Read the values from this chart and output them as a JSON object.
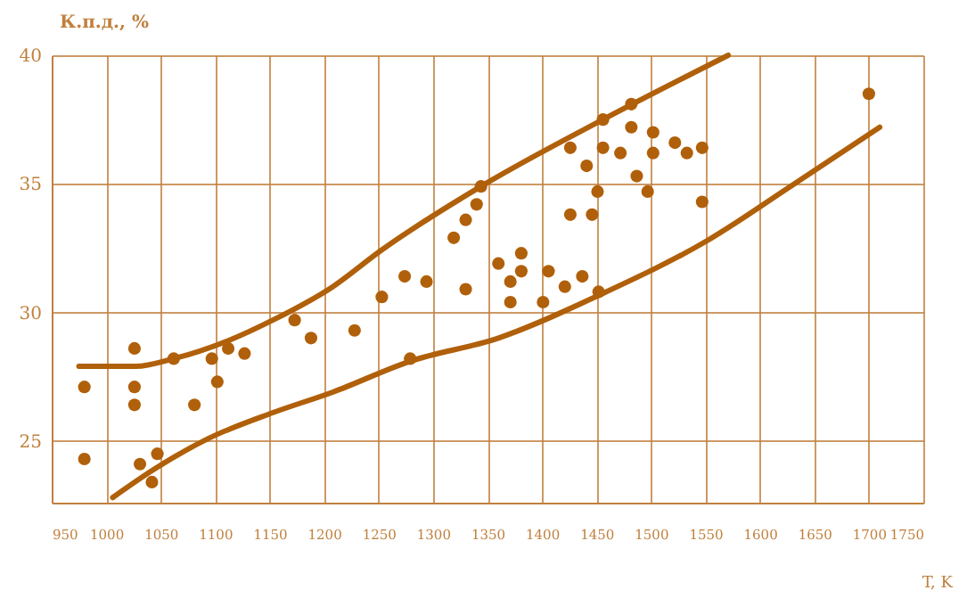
{
  "chart_data": {
    "type": "scatter",
    "xlabel": "T, K",
    "ylabel": "К.п.д., %",
    "xlim": [
      950,
      1750
    ],
    "ylim": [
      22.6,
      40
    ],
    "xticks": [
      950,
      1000,
      1050,
      1100,
      1150,
      1200,
      1250,
      1300,
      1350,
      1400,
      1450,
      1500,
      1550,
      1600,
      1650,
      1700,
      1750
    ],
    "yticks": [
      25,
      30,
      35,
      40
    ],
    "grid": true,
    "series": [
      {
        "marker": "circle",
        "color": "#b0600a",
        "x": [
          980,
          980,
          1026,
          1026,
          1026,
          1031,
          1042,
          1047,
          1062,
          1081,
          1097,
          1102,
          1112,
          1127,
          1173,
          1188,
          1228,
          1253,
          1279,
          1274,
          1294,
          1330,
          1319,
          1330,
          1340,
          1344,
          1360,
          1426,
          1441,
          1456,
          1456,
          1472,
          1482,
          1482,
          1502,
          1502,
          1487,
          1497,
          1522,
          1533,
          1547,
          1547,
          1451,
          1426,
          1446,
          1700,
          1381,
          1371,
          1381,
          1406,
          1421,
          1437,
          1452,
          1371,
          1401
        ],
        "values": [
          27.1,
          24.3,
          28.6,
          27.1,
          26.4,
          24.1,
          23.4,
          24.5,
          28.2,
          26.4,
          28.2,
          27.3,
          28.6,
          28.4,
          29.7,
          29.0,
          29.3,
          30.6,
          28.2,
          31.4,
          31.2,
          30.9,
          32.9,
          33.6,
          34.2,
          34.9,
          31.9,
          36.4,
          35.7,
          37.5,
          36.4,
          36.2,
          38.1,
          37.2,
          37.0,
          36.2,
          35.3,
          34.7,
          36.6,
          36.2,
          36.4,
          34.3,
          34.7,
          33.8,
          33.8,
          38.5,
          32.3,
          31.2,
          31.6,
          31.6,
          31.0,
          31.4,
          30.8,
          30.4,
          30.4
        ]
      },
      {
        "type": "line",
        "color": "#b0600a",
        "x": [
          975,
          1027,
          1062,
          1112,
          1153,
          1208,
          1252,
          1344,
          1456,
          1571
        ],
        "values": [
          27.9,
          27.9,
          28.2,
          28.9,
          29.7,
          31.0,
          32.4,
          34.9,
          37.5,
          40.0
        ]
      },
      {
        "type": "line",
        "color": "#b0600a",
        "x": [
          1006,
          1044,
          1094,
          1153,
          1208,
          1279,
          1360,
          1454,
          1552,
          1628,
          1710
        ],
        "values": [
          22.8,
          23.9,
          25.1,
          26.1,
          26.9,
          28.1,
          29.0,
          30.7,
          32.8,
          34.9,
          37.2
        ]
      }
    ]
  }
}
